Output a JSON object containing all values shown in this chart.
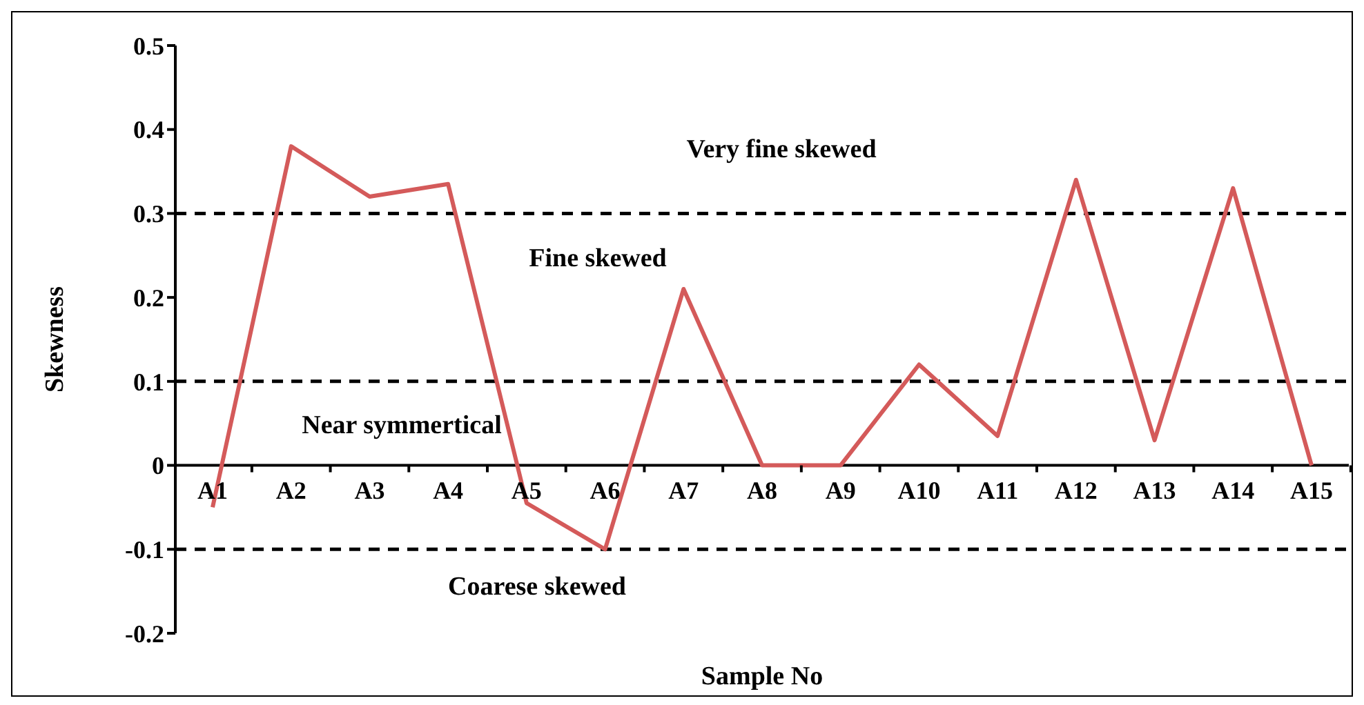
{
  "chart_data": {
    "type": "line",
    "xlabel": "Sample No",
    "ylabel": "Skewness",
    "categories": [
      "A1",
      "A2",
      "A3",
      "A4",
      "A5",
      "A6",
      "A7",
      "A8",
      "A9",
      "A10",
      "A11",
      "A12",
      "A13",
      "A14",
      "A15"
    ],
    "series": [
      {
        "color": "#d45a5a",
        "values": [
          -0.05,
          0.38,
          0.32,
          0.335,
          -0.045,
          -0.1,
          0.21,
          0,
          0,
          0.12,
          0.035,
          0.34,
          0.03,
          0.33,
          0
        ]
      }
    ],
    "ylim": [
      -0.2,
      0.5
    ],
    "yticks": [
      -0.2,
      -0.1,
      0,
      0.1,
      0.2,
      0.3,
      0.4,
      0.5
    ],
    "ref_lines": [
      {
        "axis": "y",
        "value": 0.3,
        "color": "#000000",
        "line_style": "dashed"
      },
      {
        "axis": "y",
        "value": 0.1,
        "color": "#000000",
        "line_style": "dashed"
      },
      {
        "axis": "y",
        "value": -0.1,
        "color": "#000000",
        "line_style": "dashed"
      }
    ],
    "annotations": [
      "Very fine skewed",
      "Fine skewed",
      "Near symmertical",
      "Coarese skewed"
    ],
    "grid": false,
    "legend": false,
    "marker": "none",
    "line_style": "solid"
  }
}
